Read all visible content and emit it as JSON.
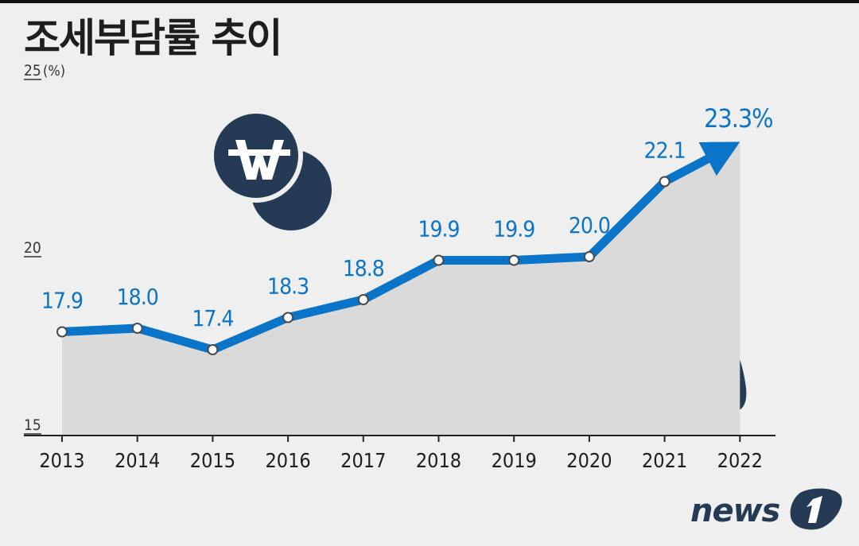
{
  "header": {
    "title": "조세부담률 추이"
  },
  "chart_data": {
    "type": "area",
    "title": "조세부담률 추이",
    "y_unit_label": "(%)",
    "x": [
      "2013",
      "2014",
      "2015",
      "2016",
      "2017",
      "2018",
      "2019",
      "2020",
      "2021",
      "2022"
    ],
    "values": [
      17.9,
      18.0,
      17.4,
      18.3,
      18.8,
      19.9,
      19.9,
      20.0,
      22.1,
      23.3
    ],
    "data_labels": [
      "17.9",
      "18.0",
      "17.4",
      "18.3",
      "18.8",
      "19.9",
      "19.9",
      "20.0",
      "22.1",
      "23.3%"
    ],
    "y_ticks": [
      "25",
      "20",
      "15"
    ],
    "ylim": [
      15,
      25
    ],
    "grid": false,
    "last_point_style": "arrow",
    "colors": {
      "line": "#0a74c9",
      "label": "#0a74c9",
      "area": "#dadada",
      "icon": "#243a55"
    }
  },
  "icons": [
    "coins-icon",
    "money-bag-icon"
  ],
  "logo": {
    "text": "news1"
  }
}
